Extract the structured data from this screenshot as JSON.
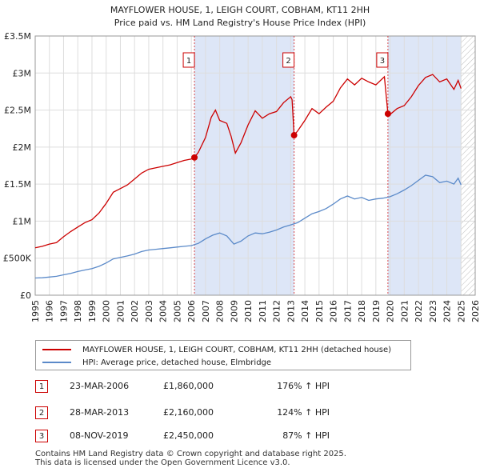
{
  "chart_data": {
    "type": "line",
    "title": "MAYFLOWER HOUSE, 1, LEIGH COURT, COBHAM, KT11 2HH",
    "subtitle": "Price paid vs. HM Land Registry's House Price Index (HPI)",
    "xlim": [
      1995,
      2026
    ],
    "ylim": [
      0,
      3500000
    ],
    "x_ticks": [
      1995,
      1996,
      1997,
      1998,
      1999,
      2000,
      2001,
      2002,
      2003,
      2004,
      2005,
      2006,
      2007,
      2008,
      2009,
      2010,
      2011,
      2012,
      2013,
      2014,
      2015,
      2016,
      2017,
      2018,
      2019,
      2020,
      2021,
      2022,
      2023,
      2024,
      2025,
      2026
    ],
    "y_ticks": [
      0,
      500000,
      1000000,
      1500000,
      2000000,
      2500000,
      3000000,
      3500000
    ],
    "y_tick_labels": [
      "£0",
      "£500K",
      "£1M",
      "£1.5M",
      "£2M",
      "£2.5M",
      "£3M",
      "£3.5M"
    ],
    "shaded_ranges": [
      [
        2006.22,
        2013.24
      ],
      [
        2019.85,
        2025.0
      ]
    ],
    "forecast_start": 2025.0,
    "series": [
      {
        "name": "MAYFLOWER HOUSE, 1, LEIGH COURT, COBHAM, KT11 2HH (detached house)",
        "color": "#cc0000",
        "points": [
          [
            1995.0,
            640000
          ],
          [
            1995.5,
            660000
          ],
          [
            1996.0,
            690000
          ],
          [
            1996.5,
            710000
          ],
          [
            1997.0,
            790000
          ],
          [
            1997.5,
            860000
          ],
          [
            1998.0,
            920000
          ],
          [
            1998.5,
            980000
          ],
          [
            1999.0,
            1020000
          ],
          [
            1999.5,
            1110000
          ],
          [
            2000.0,
            1240000
          ],
          [
            2000.5,
            1390000
          ],
          [
            2001.0,
            1440000
          ],
          [
            2001.5,
            1490000
          ],
          [
            2002.0,
            1570000
          ],
          [
            2002.5,
            1650000
          ],
          [
            2003.0,
            1700000
          ],
          [
            2003.5,
            1720000
          ],
          [
            2004.0,
            1740000
          ],
          [
            2004.5,
            1760000
          ],
          [
            2005.0,
            1790000
          ],
          [
            2005.5,
            1820000
          ],
          [
            2006.0,
            1840000
          ],
          [
            2006.22,
            1860000
          ],
          [
            2006.5,
            1930000
          ],
          [
            2007.0,
            2130000
          ],
          [
            2007.4,
            2400000
          ],
          [
            2007.7,
            2500000
          ],
          [
            2008.0,
            2360000
          ],
          [
            2008.5,
            2320000
          ],
          [
            2008.8,
            2150000
          ],
          [
            2009.1,
            1920000
          ],
          [
            2009.5,
            2060000
          ],
          [
            2010.0,
            2300000
          ],
          [
            2010.5,
            2490000
          ],
          [
            2011.0,
            2390000
          ],
          [
            2011.5,
            2450000
          ],
          [
            2012.0,
            2480000
          ],
          [
            2012.5,
            2600000
          ],
          [
            2013.0,
            2680000
          ],
          [
            2013.1,
            2640000
          ],
          [
            2013.24,
            2160000
          ],
          [
            2013.5,
            2220000
          ],
          [
            2014.0,
            2360000
          ],
          [
            2014.5,
            2520000
          ],
          [
            2015.0,
            2450000
          ],
          [
            2015.5,
            2540000
          ],
          [
            2016.0,
            2620000
          ],
          [
            2016.5,
            2800000
          ],
          [
            2017.0,
            2920000
          ],
          [
            2017.5,
            2840000
          ],
          [
            2018.0,
            2930000
          ],
          [
            2018.5,
            2880000
          ],
          [
            2019.0,
            2840000
          ],
          [
            2019.6,
            2950000
          ],
          [
            2019.85,
            2450000
          ],
          [
            2020.0,
            2440000
          ],
          [
            2020.5,
            2520000
          ],
          [
            2021.0,
            2560000
          ],
          [
            2021.5,
            2680000
          ],
          [
            2022.0,
            2830000
          ],
          [
            2022.5,
            2940000
          ],
          [
            2023.0,
            2980000
          ],
          [
            2023.5,
            2880000
          ],
          [
            2024.0,
            2920000
          ],
          [
            2024.5,
            2780000
          ],
          [
            2024.8,
            2900000
          ],
          [
            2025.0,
            2790000
          ]
        ]
      },
      {
        "name": "HPI: Average price, detached house, Elmbridge",
        "color": "#5b8ac9",
        "points": [
          [
            1995.0,
            232000
          ],
          [
            1995.5,
            235000
          ],
          [
            1996.0,
            245000
          ],
          [
            1996.5,
            255000
          ],
          [
            1997.0,
            275000
          ],
          [
            1997.5,
            295000
          ],
          [
            1998.0,
            320000
          ],
          [
            1998.5,
            340000
          ],
          [
            1999.0,
            360000
          ],
          [
            1999.5,
            390000
          ],
          [
            2000.0,
            435000
          ],
          [
            2000.5,
            490000
          ],
          [
            2001.0,
            510000
          ],
          [
            2001.5,
            530000
          ],
          [
            2002.0,
            555000
          ],
          [
            2002.5,
            590000
          ],
          [
            2003.0,
            610000
          ],
          [
            2003.5,
            620000
          ],
          [
            2004.0,
            630000
          ],
          [
            2004.5,
            640000
          ],
          [
            2005.0,
            650000
          ],
          [
            2005.5,
            660000
          ],
          [
            2006.0,
            670000
          ],
          [
            2006.5,
            700000
          ],
          [
            2007.0,
            760000
          ],
          [
            2007.5,
            810000
          ],
          [
            2008.0,
            840000
          ],
          [
            2008.5,
            800000
          ],
          [
            2009.0,
            690000
          ],
          [
            2009.5,
            730000
          ],
          [
            2010.0,
            800000
          ],
          [
            2010.5,
            840000
          ],
          [
            2011.0,
            830000
          ],
          [
            2011.5,
            850000
          ],
          [
            2012.0,
            880000
          ],
          [
            2012.5,
            920000
          ],
          [
            2013.0,
            950000
          ],
          [
            2013.5,
            980000
          ],
          [
            2014.0,
            1040000
          ],
          [
            2014.5,
            1100000
          ],
          [
            2015.0,
            1130000
          ],
          [
            2015.5,
            1170000
          ],
          [
            2016.0,
            1230000
          ],
          [
            2016.5,
            1300000
          ],
          [
            2017.0,
            1340000
          ],
          [
            2017.5,
            1300000
          ],
          [
            2018.0,
            1320000
          ],
          [
            2018.5,
            1280000
          ],
          [
            2019.0,
            1300000
          ],
          [
            2019.5,
            1310000
          ],
          [
            2020.0,
            1330000
          ],
          [
            2020.5,
            1370000
          ],
          [
            2021.0,
            1420000
          ],
          [
            2021.5,
            1480000
          ],
          [
            2022.0,
            1550000
          ],
          [
            2022.5,
            1620000
          ],
          [
            2023.0,
            1600000
          ],
          [
            2023.5,
            1520000
          ],
          [
            2024.0,
            1540000
          ],
          [
            2024.5,
            1500000
          ],
          [
            2024.8,
            1580000
          ],
          [
            2025.0,
            1490000
          ]
        ]
      }
    ],
    "markers": [
      {
        "label": "1",
        "x": 2006.22,
        "y": 1860000
      },
      {
        "label": "2",
        "x": 2013.24,
        "y": 2160000
      },
      {
        "label": "3",
        "x": 2019.85,
        "y": 2450000
      }
    ]
  },
  "legend": {
    "property_label": "MAYFLOWER HOUSE, 1, LEIGH COURT, COBHAM, KT11 2HH (detached house)",
    "hpi_label": "HPI: Average price, detached house, Elmbridge"
  },
  "transactions": [
    {
      "num": "1",
      "date": "23-MAR-2006",
      "price": "£1,860,000",
      "hpi": "176% ↑ HPI"
    },
    {
      "num": "2",
      "date": "28-MAR-2013",
      "price": "£2,160,000",
      "hpi": "124% ↑ HPI"
    },
    {
      "num": "3",
      "date": "08-NOV-2019",
      "price": "£2,450,000",
      "hpi": "87% ↑ HPI"
    }
  ],
  "footer": {
    "line1": "Contains HM Land Registry data © Crown copyright and database right 2025.",
    "line2": "This data is licensed under the Open Government Licence v3.0."
  },
  "colors": {
    "property": "#cc0000",
    "hpi": "#5b8ac9",
    "shade": "#dde6f7",
    "grid": "#dddddd"
  }
}
